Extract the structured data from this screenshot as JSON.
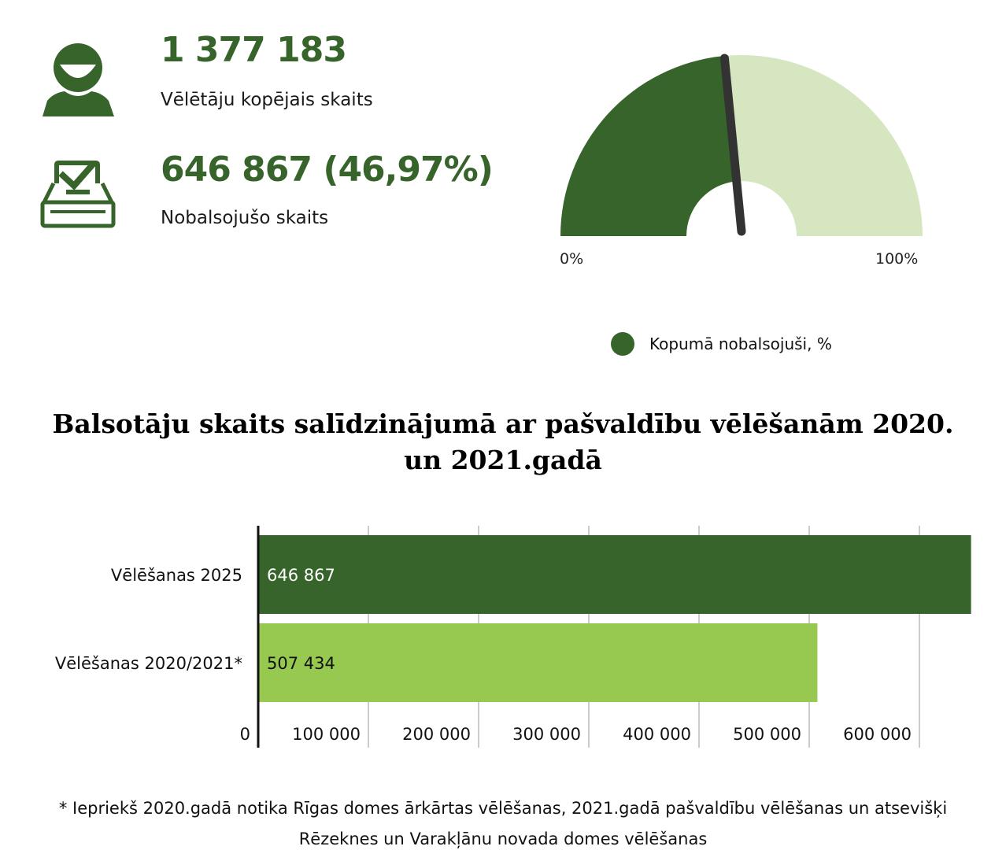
{
  "stats": {
    "total_voters": {
      "value": "1 377 183",
      "label": "Vēlētāju kopējais skaits"
    },
    "voted": {
      "value": "646 867 (46,97%)",
      "label": "Nobalsojušo skaits"
    }
  },
  "icons": {
    "total_voters": "person-icon",
    "voted": "ballot-box-icon"
  },
  "colors": {
    "dark_green": "#37642a",
    "light_green": "#d5e6c1",
    "lime_green": "#97c84f",
    "needle": "#333333"
  },
  "gauge": {
    "min_label": "0%",
    "max_label": "100%",
    "value_percent": 46.97,
    "legend_label": "Kopumā nobalsojuši, %"
  },
  "chart_data": {
    "type": "bar",
    "orientation": "horizontal",
    "title": "Balsotāju skaits salīdzinājumā ar pašvaldību vēlēšanām 2020. un 2021.gadā",
    "categories": [
      "Vēlēšanas 2025",
      "Vēlēšanas 2020/2021*"
    ],
    "values": [
      646867,
      507434
    ],
    "value_labels": [
      "646 867",
      "507 434"
    ],
    "xlim": [
      0,
      650000
    ],
    "x_ticks": [
      0,
      100000,
      200000,
      300000,
      400000,
      500000,
      600000
    ],
    "x_tick_labels": [
      "0",
      "100 000",
      "200 000",
      "300 000",
      "400 000",
      "500 000",
      "600 000"
    ],
    "grid": true,
    "legend": "none"
  },
  "footnote": "* Iepriekš 2020.gadā notika Rīgas domes ārkārtas vēlēšanas, 2021.gadā pašvaldību vēlēšanas un atsevišķi Rēzeknes un Varakļānu novada domes vēlēšanas"
}
